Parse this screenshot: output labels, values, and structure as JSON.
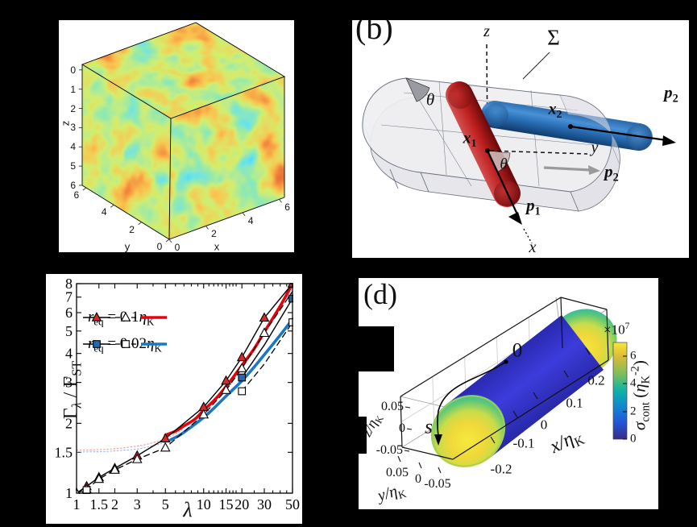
{
  "figure": {
    "background": "#000000",
    "panel_background": "#ffffff"
  },
  "panels": {
    "a": {
      "name": "turbulent-field-cube",
      "xlabel": "x",
      "ylabel": "y",
      "zlabel": "z",
      "x_ticks": [
        "0",
        "2",
        "4",
        "6"
      ],
      "y_ticks": [
        "0",
        "2",
        "4",
        "6"
      ],
      "z_ticks": [
        "0",
        "1",
        "2",
        "3",
        "4",
        "5",
        "6"
      ]
    },
    "b": {
      "label": "(b)",
      "surface_label": "Σ",
      "axis_z": "z",
      "axis_y": "y",
      "axis_x": "x",
      "angle1": "θ",
      "angle2": "θ",
      "x1_parts": [
        {
          "t": "x",
          "s": "bi"
        },
        {
          "t": "1",
          "s": "subb"
        }
      ],
      "x2_parts": [
        {
          "t": "x",
          "s": "bi"
        },
        {
          "t": "2",
          "s": "subb"
        }
      ],
      "p1_parts": [
        {
          "t": "p",
          "s": "bi"
        },
        {
          "t": "1",
          "s": "subb"
        }
      ],
      "p2_parts": [
        {
          "t": "p",
          "s": "bi"
        },
        {
          "t": "2",
          "s": "subb"
        }
      ],
      "p2_proj_parts": [
        {
          "t": "p",
          "s": "bi"
        },
        {
          "t": "2",
          "s": "subb"
        }
      ],
      "colors": {
        "rod1": "#bf1f1f",
        "rod2": "#2a72ba",
        "slab_fill": "#efeff2",
        "slab_line": "#5a6472"
      }
    },
    "d": {
      "label": "(d)",
      "origin_label": "0",
      "s_label": "s",
      "x_axis": {
        "label_parts": [
          {
            "t": "x/",
            "s": "i"
          },
          {
            "t": "η",
            "s": "i"
          },
          {
            "t": "K",
            "s": "sub"
          }
        ],
        "ticks": [
          "-0.2",
          "-0.1",
          "0",
          "0.1",
          "0.2"
        ]
      },
      "y_axis": {
        "label_parts": [
          {
            "t": "y/",
            "s": "i"
          },
          {
            "t": "η",
            "s": "i"
          },
          {
            "t": "K",
            "s": "sub"
          }
        ],
        "ticks": [
          "0.05",
          "0",
          "-0.05"
        ]
      },
      "z_axis": {
        "label_parts": [
          {
            "t": "z/",
            "s": "i"
          },
          {
            "t": "η",
            "s": "i"
          },
          {
            "t": "K",
            "s": "sub"
          }
        ],
        "ticks": [
          "0.05",
          "0",
          "-0.05"
        ]
      },
      "colorbar": {
        "exp_parts": [
          {
            "t": "×10",
            "s": "n"
          },
          {
            "t": "7",
            "s": "sup"
          }
        ],
        "ticks": [
          "0",
          "2",
          "4",
          "6"
        ],
        "label_parts": [
          {
            "t": "σ",
            "s": "i"
          },
          {
            "t": "cont",
            "s": "sub"
          },
          {
            "t": " (",
            "s": "n"
          },
          {
            "t": "η",
            "s": "i"
          },
          {
            "t": "K",
            "s": "sub"
          },
          {
            "t": "-2",
            "s": "sup"
          },
          {
            "t": ")",
            "s": "n"
          }
        ],
        "colors": [
          "#352a87",
          "#2355d8",
          "#1187cf",
          "#0cb3a8",
          "#7fbf5a",
          "#d9bb38",
          "#f9e53a"
        ]
      },
      "cylinder_colors": {
        "body": "#3434cf",
        "cap_center": "#f6ea3d",
        "cap_green": "#5ec878",
        "cap_teal": "#2cb4ac",
        "cap_rim": "#a8cf49"
      }
    }
  },
  "chart_data": [
    {
      "panel": "a",
      "type": "heatmap",
      "description": "3D periodic cube volume rendering of a DNS turbulent flow field, jet colormap on the three visible faces",
      "xlabel": "x",
      "ylabel": "y",
      "zlabel": "z",
      "x_ticks": [
        0,
        2,
        4,
        6
      ],
      "y_ticks": [
        0,
        2,
        4,
        6
      ],
      "z_ticks": [
        0,
        1,
        2,
        3,
        4,
        5,
        6
      ],
      "xlim": [
        0,
        6.28
      ],
      "ylim": [
        0,
        6.28
      ],
      "zlim": [
        0,
        6.28
      ]
    },
    {
      "panel": "c",
      "type": "line",
      "xscale": "log",
      "yscale": "log",
      "xlabel": "λ",
      "ylabel_parts": [
        {
          "t": "Γ",
          "s": "n"
        },
        {
          "t": "λ",
          "s": "subi"
        },
        {
          "t": " / ",
          "s": "n"
        },
        {
          "t": "Γ",
          "s": "n"
        },
        {
          "t": "ST",
          "s": "sub"
        }
      ],
      "xlim": [
        1,
        50
      ],
      "ylim": [
        1,
        8
      ],
      "x_ticks": [
        1,
        1.5,
        2,
        3,
        5,
        10,
        15,
        20,
        30,
        50
      ],
      "x_minor_ticks": [
        4,
        6,
        7,
        8,
        9,
        11,
        12,
        13,
        14,
        16,
        17,
        18,
        25,
        35,
        40,
        45
      ],
      "y_ticks": [
        1,
        1.5,
        2,
        3,
        4,
        5,
        6,
        7,
        8
      ],
      "legend_position": "upper-left",
      "legend": [
        {
          "marker": "triangle",
          "marker_fill": "#d42a2a",
          "curve_color": "#e8000b",
          "parts": [
            {
              "t": "r",
              "s": "i"
            },
            {
              "t": "eq",
              "s": "sub"
            },
            {
              "t": " = 0.1",
              "s": "n"
            },
            {
              "t": "η",
              "s": "i"
            },
            {
              "t": "K",
              "s": "sub"
            }
          ]
        },
        {
          "marker": "square",
          "marker_fill": "#2268b2",
          "curve_color": "#1778c8",
          "parts": [
            {
              "t": "r",
              "s": "i"
            },
            {
              "t": "eq",
              "s": "sub"
            },
            {
              "t": " = 0.02",
              "s": "n"
            },
            {
              "t": "η",
              "s": "i"
            },
            {
              "t": "K",
              "s": "sub"
            }
          ]
        }
      ],
      "series": [
        {
          "name": "dotted model r_eq=0.1",
          "line": "dotted",
          "smooth": true,
          "color": "#f09898",
          "width": 1.1,
          "marker": "none",
          "x": [
            1,
            1.5,
            2,
            3,
            4,
            5,
            6,
            7
          ],
          "y": [
            1.53,
            1.54,
            1.555,
            1.595,
            1.65,
            1.72,
            1.8,
            1.9
          ]
        },
        {
          "name": "dotted model r_eq=0.02",
          "line": "dotted",
          "smooth": true,
          "color": "#98bce8",
          "width": 1.1,
          "marker": "none",
          "x": [
            1,
            1.5,
            2,
            3,
            4,
            5,
            6,
            7
          ],
          "y": [
            1.505,
            1.51,
            1.52,
            1.55,
            1.6,
            1.655,
            1.73,
            1.82
          ]
        },
        {
          "name": "theory r_eq=0.1ηK",
          "line": "solid",
          "smooth": true,
          "color": "#e8000b",
          "width": 3.6,
          "marker": "none",
          "x": [
            5,
            6,
            7,
            8.5,
            10,
            12,
            15,
            20,
            25,
            30,
            40,
            50
          ],
          "y": [
            1.78,
            1.85,
            1.95,
            2.08,
            2.28,
            2.5,
            2.88,
            3.55,
            4.2,
            4.95,
            6.4,
            8.0
          ]
        },
        {
          "name": "theory r_eq=0.02ηK",
          "line": "solid",
          "smooth": true,
          "color": "#1778c8",
          "width": 3.6,
          "marker": "none",
          "x": [
            5.5,
            6.5,
            8,
            10,
            12,
            15,
            20,
            25,
            30,
            40,
            50
          ],
          "y": [
            1.7,
            1.78,
            1.93,
            2.12,
            2.32,
            2.62,
            3.05,
            3.5,
            3.95,
            4.8,
            5.62
          ]
        },
        {
          "name": "DNS r_eq=0.1ηK",
          "line": "solid",
          "color": "#000000",
          "width": 1.4,
          "marker": "triangle-filled",
          "marker_color": "#d42a2a",
          "x": [
            1,
            1.2,
            1.5,
            2,
            3,
            5,
            10,
            15,
            20,
            30,
            50
          ],
          "y": [
            1.0,
            1.07,
            1.17,
            1.28,
            1.45,
            1.72,
            2.35,
            3.05,
            3.85,
            5.7,
            8.0
          ]
        },
        {
          "name": "model r_eq=0.1ηK",
          "line": "dashed",
          "color": "#000000",
          "width": 1.3,
          "marker": "triangle-open",
          "x": [
            1,
            1.2,
            1.5,
            2,
            3,
            5,
            10,
            15,
            20,
            30,
            50
          ],
          "y": [
            1.0,
            1.04,
            1.15,
            1.26,
            1.4,
            1.57,
            2.18,
            2.78,
            3.45,
            4.9,
            7.4
          ],
          "mx": [
            1,
            1.2,
            1.5,
            2,
            3,
            5,
            10,
            15,
            20,
            30
          ],
          "my": [
            1.0,
            1.04,
            1.15,
            1.26,
            1.4,
            1.57,
            2.18,
            2.78,
            3.45,
            4.9
          ]
        },
        {
          "name": "DNS r_eq=0.02ηK",
          "line": "solid",
          "color": "#000000",
          "width": 1.4,
          "marker": "square-filled",
          "marker_color": "#2268b2",
          "x": [
            20,
            30,
            50
          ],
          "y": [
            3.15,
            4.35,
            6.9
          ],
          "mx": [
            20,
            50
          ],
          "my": [
            3.15,
            6.9
          ]
        },
        {
          "name": "model r_eq=0.02ηK",
          "line": "dashed",
          "color": "#000000",
          "width": 1.3,
          "marker": "square-open",
          "x": [
            20,
            30,
            50
          ],
          "y": [
            2.75,
            3.6,
            5.45
          ],
          "mx": [
            1.2,
            20,
            50
          ],
          "my": [
            1.03,
            2.75,
            5.45
          ]
        }
      ]
    },
    {
      "panel": "d",
      "type": "heatmap",
      "description": "Contact-stress field σ_cont on the surface of an elongated spheroid, parula colormap; value high (yellow) at the tips, low (blue) on the body",
      "xlabel": "x/ηK",
      "ylabel": "y/ηK",
      "zlabel": "z/ηK",
      "x_ticks": [
        -0.2,
        -0.1,
        0,
        0.1,
        0.2
      ],
      "y_ticks": [
        0.05,
        0,
        -0.05
      ],
      "z_ticks": [
        0.05,
        0,
        -0.05
      ],
      "clim": [
        0,
        70000000
      ],
      "colorbar_ticks": [
        0,
        2,
        4,
        6
      ],
      "colorbar_scale": "×10^7",
      "colorbar_label": "σ_cont (ηK^-2)"
    }
  ]
}
